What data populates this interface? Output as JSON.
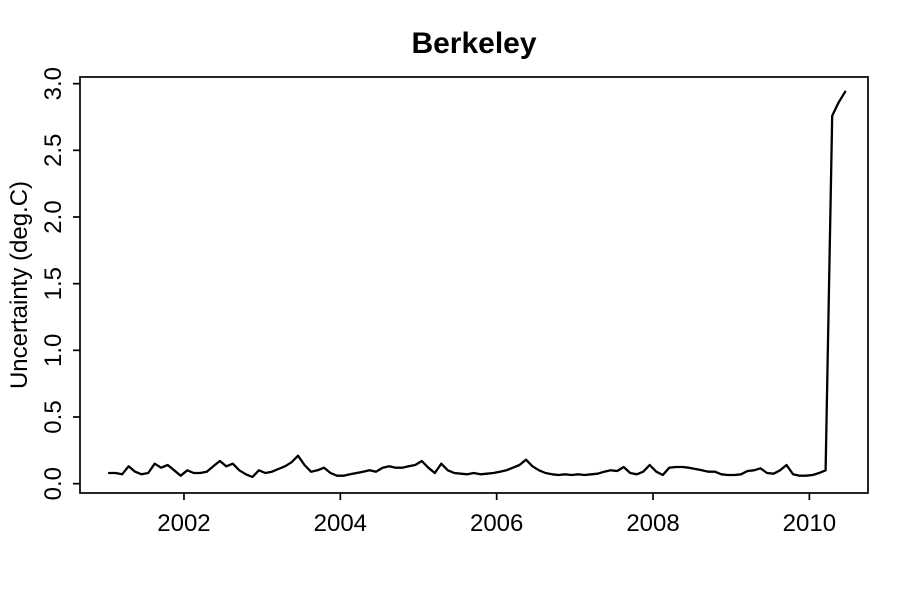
{
  "chart_data": {
    "type": "line",
    "title": "Berkeley",
    "xlabel": "",
    "ylabel": "Uncertainty (deg.C)",
    "series_name": "uncertainty",
    "line_color": "#000000",
    "background_color": "#ffffff",
    "grid": false,
    "legend_position": "none",
    "xlim": [
      2000.67,
      2010.75
    ],
    "ylim": [
      -0.07,
      3.05
    ],
    "xticks": [
      2002,
      2004,
      2006,
      2008,
      2010
    ],
    "xtick_labels": [
      "2002",
      "2004",
      "2006",
      "2008",
      "2010"
    ],
    "ytick_values": [
      0.0,
      0.5,
      1.0,
      1.5,
      2.0,
      2.5,
      3.0
    ],
    "ytick_labels": [
      "0.0",
      "0.5",
      "1.0",
      "1.5",
      "2.0",
      "2.5",
      "3.0"
    ],
    "x": [
      2001.042,
      2001.125,
      2001.208,
      2001.292,
      2001.375,
      2001.458,
      2001.542,
      2001.625,
      2001.708,
      2001.792,
      2001.875,
      2001.958,
      2002.042,
      2002.125,
      2002.208,
      2002.292,
      2002.375,
      2002.458,
      2002.542,
      2002.625,
      2002.708,
      2002.792,
      2002.875,
      2002.958,
      2003.042,
      2003.125,
      2003.208,
      2003.292,
      2003.375,
      2003.458,
      2003.542,
      2003.625,
      2003.708,
      2003.792,
      2003.875,
      2003.958,
      2004.042,
      2004.125,
      2004.208,
      2004.292,
      2004.375,
      2004.458,
      2004.542,
      2004.625,
      2004.708,
      2004.792,
      2004.875,
      2004.958,
      2005.042,
      2005.125,
      2005.208,
      2005.292,
      2005.375,
      2005.458,
      2005.542,
      2005.625,
      2005.708,
      2005.792,
      2005.875,
      2005.958,
      2006.042,
      2006.125,
      2006.208,
      2006.292,
      2006.375,
      2006.458,
      2006.542,
      2006.625,
      2006.708,
      2006.792,
      2006.875,
      2006.958,
      2007.042,
      2007.125,
      2007.208,
      2007.292,
      2007.375,
      2007.458,
      2007.542,
      2007.625,
      2007.708,
      2007.792,
      2007.875,
      2007.958,
      2008.042,
      2008.125,
      2008.208,
      2008.292,
      2008.375,
      2008.458,
      2008.542,
      2008.625,
      2008.708,
      2008.792,
      2008.875,
      2008.958,
      2009.042,
      2009.125,
      2009.208,
      2009.292,
      2009.375,
      2009.458,
      2009.542,
      2009.625,
      2009.708,
      2009.792,
      2009.875,
      2009.958,
      2010.042,
      2010.125,
      2010.208,
      2010.292,
      2010.375,
      2010.458
    ],
    "y": [
      0.08,
      0.08,
      0.07,
      0.13,
      0.09,
      0.07,
      0.08,
      0.15,
      0.12,
      0.14,
      0.1,
      0.06,
      0.1,
      0.08,
      0.08,
      0.09,
      0.13,
      0.17,
      0.13,
      0.15,
      0.1,
      0.07,
      0.05,
      0.1,
      0.08,
      0.09,
      0.11,
      0.13,
      0.16,
      0.21,
      0.14,
      0.09,
      0.1,
      0.12,
      0.08,
      0.06,
      0.06,
      0.07,
      0.08,
      0.09,
      0.1,
      0.09,
      0.12,
      0.13,
      0.12,
      0.12,
      0.13,
      0.14,
      0.17,
      0.12,
      0.08,
      0.15,
      0.1,
      0.08,
      0.075,
      0.07,
      0.08,
      0.07,
      0.075,
      0.08,
      0.09,
      0.1,
      0.12,
      0.14,
      0.18,
      0.13,
      0.1,
      0.08,
      0.07,
      0.065,
      0.07,
      0.065,
      0.07,
      0.065,
      0.07,
      0.075,
      0.09,
      0.1,
      0.095,
      0.125,
      0.08,
      0.07,
      0.09,
      0.14,
      0.09,
      0.065,
      0.12,
      0.125,
      0.125,
      0.12,
      0.11,
      0.1,
      0.09,
      0.09,
      0.07,
      0.065,
      0.065,
      0.07,
      0.095,
      0.1,
      0.115,
      0.08,
      0.075,
      0.1,
      0.14,
      0.07,
      0.06,
      0.06,
      0.065,
      0.08,
      0.1,
      2.76,
      2.86,
      2.94
    ]
  }
}
